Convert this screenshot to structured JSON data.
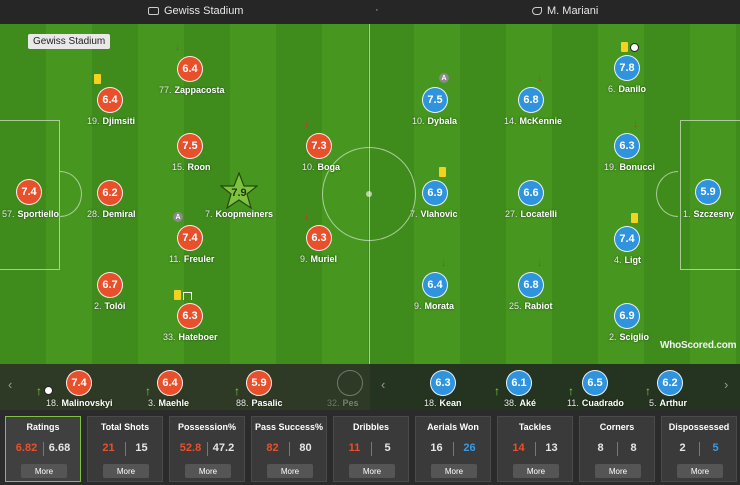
{
  "topbar": {
    "venue": "Gewiss Stadium",
    "separator": "·",
    "referee": "M. Mariani",
    "venue_icon": "stadium-icon",
    "referee_icon": "whistle-icon"
  },
  "pitch": {
    "venue_label": "Gewiss Stadium",
    "brand": "WhoScored.com",
    "home_color": "#e8502b",
    "away_color": "#2f93dd",
    "motm_color": "#7ec23f"
  },
  "home_players": [
    {
      "num": "57.",
      "name": "Sportiello",
      "rating": "7.4"
    },
    {
      "num": "19.",
      "name": "Djimsiti",
      "rating": "6.4"
    },
    {
      "num": "28.",
      "name": "Demiral",
      "rating": "6.2"
    },
    {
      "num": "2.",
      "name": "Tolói",
      "rating": "6.7"
    },
    {
      "num": "77.",
      "name": "Zappacosta",
      "rating": "6.4"
    },
    {
      "num": "15.",
      "name": "Roon",
      "rating": "7.5"
    },
    {
      "num": "7.",
      "name": "Koopmeiners",
      "rating": "7.9"
    },
    {
      "num": "11.",
      "name": "Freuler",
      "rating": "7.4"
    },
    {
      "num": "33.",
      "name": "Hateboer",
      "rating": "6.3"
    },
    {
      "num": "10.",
      "name": "Boga",
      "rating": "7.3"
    },
    {
      "num": "9.",
      "name": "Muriel",
      "rating": "6.3"
    }
  ],
  "away_players": [
    {
      "num": "10.",
      "name": "Dybala",
      "rating": "7.5"
    },
    {
      "num": "14.",
      "name": "McKennie",
      "rating": "6.8"
    },
    {
      "num": "6.",
      "name": "Danilo",
      "rating": "7.8"
    },
    {
      "num": "19.",
      "name": "Bonucci",
      "rating": "6.3"
    },
    {
      "num": "7.",
      "name": "Vlahovic",
      "rating": "6.9"
    },
    {
      "num": "27.",
      "name": "Locatelli",
      "rating": "6.6"
    },
    {
      "num": "1.",
      "name": "Szczesny",
      "rating": "5.9"
    },
    {
      "num": "4.",
      "name": "Ligt",
      "rating": "7.4"
    },
    {
      "num": "9.",
      "name": "Morata",
      "rating": "6.4"
    },
    {
      "num": "25.",
      "name": "Rabiot",
      "rating": "6.8"
    },
    {
      "num": "2.",
      "name": "Sciglio",
      "rating": "6.9"
    }
  ],
  "subs": {
    "prev_icon": "chevron-left-icon",
    "next_icon": "chevron-right-icon",
    "home": [
      {
        "num": "18.",
        "name": "Malinovskyi",
        "rating": "7.4"
      },
      {
        "num": "3.",
        "name": "Maehle",
        "rating": "6.4"
      },
      {
        "num": "88.",
        "name": "Pasalic",
        "rating": "5.9"
      },
      {
        "num": "32.",
        "name": "Pes",
        "rating": ""
      }
    ],
    "away": [
      {
        "num": "18.",
        "name": "Kean",
        "rating": "6.3"
      },
      {
        "num": "38.",
        "name": "Aké",
        "rating": "6.1"
      },
      {
        "num": "11.",
        "name": "Cuadrado",
        "rating": "6.5"
      },
      {
        "num": "5.",
        "name": "Arthur",
        "rating": "6.2"
      }
    ]
  },
  "stats": [
    {
      "title": "Ratings",
      "home": "6.82",
      "away": "6.68",
      "more": "More",
      "highlight": "home"
    },
    {
      "title": "Total Shots",
      "home": "21",
      "away": "15",
      "more": "More",
      "highlight": "home"
    },
    {
      "title": "Possession%",
      "home": "52.8",
      "away": "47.2",
      "more": "More",
      "highlight": "home"
    },
    {
      "title": "Pass Success%",
      "home": "82",
      "away": "80",
      "more": "More",
      "highlight": "home"
    },
    {
      "title": "Dribbles",
      "home": "11",
      "away": "5",
      "more": "More",
      "highlight": "home"
    },
    {
      "title": "Aerials Won",
      "home": "16",
      "away": "26",
      "more": "More",
      "highlight": "away"
    },
    {
      "title": "Tackles",
      "home": "14",
      "away": "13",
      "more": "More",
      "highlight": "home"
    },
    {
      "title": "Corners",
      "home": "8",
      "away": "8",
      "more": "More",
      "highlight": "none"
    },
    {
      "title": "Dispossessed",
      "home": "2",
      "away": "5",
      "more": "More",
      "highlight": "away"
    }
  ]
}
